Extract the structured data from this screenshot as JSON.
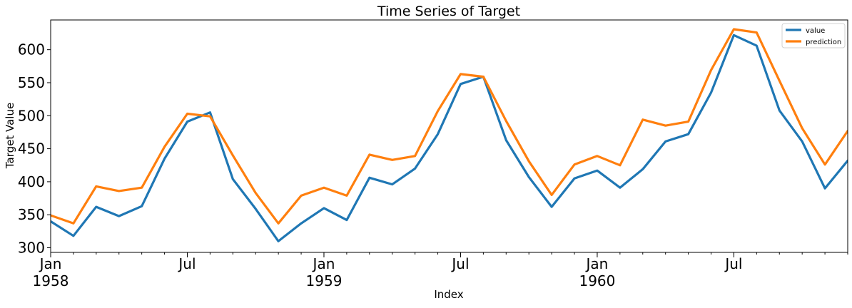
{
  "chart_data": {
    "type": "line",
    "title": "Time Series of Target",
    "xlabel": "Index",
    "ylabel": "Target Value",
    "x": [
      "1958-01",
      "1958-02",
      "1958-03",
      "1958-04",
      "1958-05",
      "1958-06",
      "1958-07",
      "1958-08",
      "1958-09",
      "1958-10",
      "1958-11",
      "1958-12",
      "1959-01",
      "1959-02",
      "1959-03",
      "1959-04",
      "1959-05",
      "1959-06",
      "1959-07",
      "1959-08",
      "1959-09",
      "1959-10",
      "1959-11",
      "1959-12",
      "1960-01",
      "1960-02",
      "1960-03",
      "1960-04",
      "1960-05",
      "1960-06",
      "1960-07",
      "1960-08",
      "1960-09",
      "1960-10",
      "1960-11",
      "1960-12"
    ],
    "xlim": [
      "1958-01",
      "1960-12"
    ],
    "ylim": [
      293,
      645
    ],
    "yticks": [
      300,
      350,
      400,
      450,
      500,
      550,
      600
    ],
    "xticks": [
      {
        "x": "1958-01",
        "label": "Jan",
        "sublabel": "1958"
      },
      {
        "x": "1958-07",
        "label": "Jul",
        "sublabel": ""
      },
      {
        "x": "1959-01",
        "label": "Jan",
        "sublabel": "1959"
      },
      {
        "x": "1959-07",
        "label": "Jul",
        "sublabel": ""
      },
      {
        "x": "1960-01",
        "label": "Jan",
        "sublabel": "1960"
      },
      {
        "x": "1960-07",
        "label": "Jul",
        "sublabel": ""
      }
    ],
    "grid": false,
    "legend_position": "top-right",
    "series": [
      {
        "name": "value",
        "color": "#1f77b4",
        "values": [
          340,
          318,
          362,
          348,
          363,
          435,
          491,
          505,
          404,
          359,
          310,
          337,
          360,
          342,
          406,
          396,
          420,
          472,
          548,
          559,
          463,
          407,
          362,
          405,
          417,
          391,
          419,
          461,
          472,
          535,
          622,
          606,
          508,
          461,
          390,
          432
        ]
      },
      {
        "name": "prediction",
        "color": "#ff7f0e",
        "values": [
          349,
          337,
          393,
          386,
          391,
          453,
          503,
          499,
          440,
          383,
          337,
          379,
          391,
          379,
          441,
          433,
          439,
          507,
          563,
          559,
          492,
          431,
          380,
          426,
          439,
          425,
          494,
          485,
          491,
          569,
          631,
          626,
          553,
          481,
          426,
          477
        ]
      }
    ]
  }
}
